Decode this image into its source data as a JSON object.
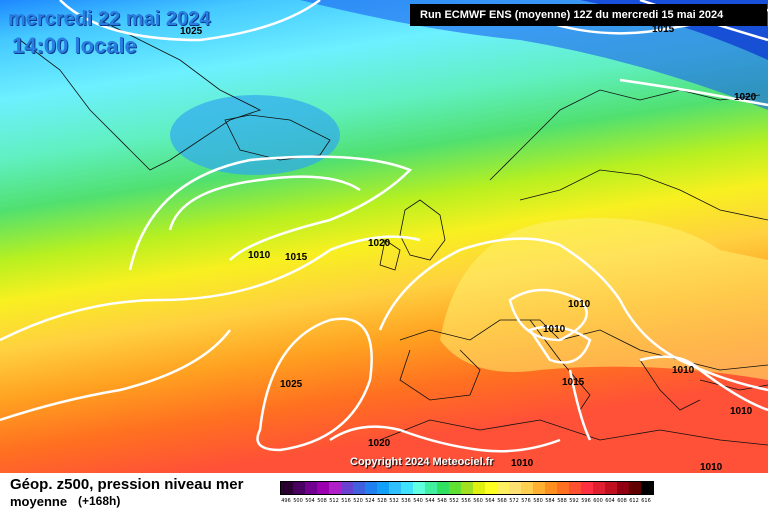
{
  "header": {
    "date": "mercredi 22 mai 2024",
    "time": "14:00 locale",
    "run": "Run ECMWF ENS (moyenne) 12Z du mercredi 15 mai 2024"
  },
  "map": {
    "isobar_labels": [
      "1025",
      "1015",
      "1020",
      "1010",
      "1015",
      "1020",
      "1010",
      "1010",
      "1025",
      "1015",
      "1010",
      "1020",
      "1010",
      "1010",
      "1010"
    ],
    "copyright": "Copyright 2024 Meteociel.fr"
  },
  "footer": {
    "title": "Géop. z500, pression niveau mer",
    "subtitle": "moyenne",
    "lead": "(+168h)"
  },
  "scale": {
    "labels": [
      "496",
      "500",
      "504",
      "508",
      "512",
      "516",
      "520",
      "524",
      "528",
      "532",
      "536",
      "540",
      "544",
      "548",
      "552",
      "556",
      "560",
      "564",
      "568",
      "572",
      "576",
      "580",
      "584",
      "588",
      "592",
      "596",
      "600",
      "604",
      "608",
      "612",
      "616"
    ],
    "colors": [
      "#2a0030",
      "#4a0060",
      "#700090",
      "#9a00b0",
      "#b020c8",
      "#6a40d0",
      "#4060e0",
      "#2080f0",
      "#10a0f8",
      "#30c0ff",
      "#40e0ff",
      "#60ffe0",
      "#40f0a0",
      "#30e060",
      "#60e030",
      "#a0e020",
      "#e0f010",
      "#ffff20",
      "#fff060",
      "#ffe070",
      "#ffd050",
      "#ffb030",
      "#ff9020",
      "#ff7020",
      "#ff5030",
      "#ff3040",
      "#e02030",
      "#c01020",
      "#900010",
      "#600000",
      "#000000"
    ]
  }
}
